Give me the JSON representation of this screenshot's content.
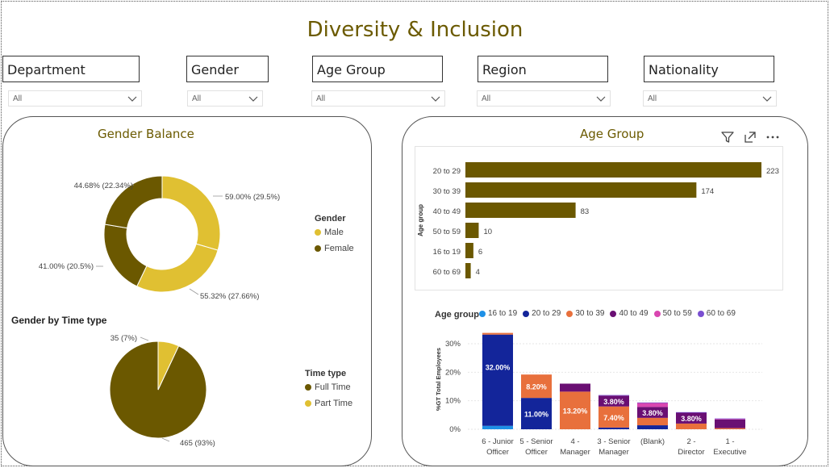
{
  "report": {
    "title": "Diversity & Inclusion"
  },
  "slicers": [
    {
      "label": "Department",
      "value": "All"
    },
    {
      "label": "Gender",
      "value": "All"
    },
    {
      "label": "Age Group",
      "value": "All"
    },
    {
      "label": "Region",
      "value": "All"
    },
    {
      "label": "Nationality",
      "value": "All"
    }
  ],
  "colors": {
    "olive": "#6b5800",
    "gold": "#e0c032",
    "brand_title": "#6b5a00",
    "age_16_19": "#1e90e6",
    "age_20_29": "#13259a",
    "age_30_39": "#e8703c",
    "age_40_49": "#6a0f73",
    "age_50_59": "#d946b0",
    "age_60_69": "#7a4fd1"
  },
  "gender_balance": {
    "title": "Gender Balance",
    "legend_title": "Gender",
    "legend": [
      {
        "label": "Male",
        "color": "#e0c032"
      },
      {
        "label": "Female",
        "color": "#6b5800"
      }
    ],
    "labels": {
      "l1": "59.00% (29.5%)",
      "l2": "55.32% (27.66%)",
      "l3": "41.00% (20.5%)",
      "l4": "44.68% (22.34%)"
    }
  },
  "time_type": {
    "title": "Gender by Time type",
    "legend_title": "Time type",
    "legend": [
      {
        "label": "Full Time",
        "color": "#6b5800"
      },
      {
        "label": "Part Time",
        "color": "#e0c032"
      }
    ],
    "labels": {
      "part": "35 (7%)",
      "full": "465 (93%)"
    }
  },
  "age_panel": {
    "title": "Age Group",
    "stacked_legend_title": "Age group"
  },
  "chart_data": [
    {
      "type": "pie",
      "title": "Gender Balance",
      "donut": true,
      "series": [
        {
          "name": "Male",
          "values": [
            29.5,
            27.66
          ]
        },
        {
          "name": "Female",
          "values": [
            20.5,
            22.34
          ]
        }
      ]
    },
    {
      "type": "pie",
      "title": "Gender by Time type",
      "categories": [
        "Full Time",
        "Part Time"
      ],
      "values": [
        465,
        35
      ]
    },
    {
      "type": "bar",
      "orientation": "horizontal",
      "title": "Age Group",
      "ylabel": "Age group",
      "categories": [
        "20 to 29",
        "30 to 39",
        "40 to 49",
        "50 to 59",
        "16 to 19",
        "60 to 69"
      ],
      "values": [
        223,
        174,
        83,
        10,
        6,
        4
      ],
      "xlim": [
        0,
        223
      ]
    },
    {
      "type": "bar",
      "stacked": true,
      "ylabel": "%GT Total Employees",
      "legend_title": "Age group",
      "categories": [
        "6 - Junior Officer",
        "5 - Senior Officer",
        "4 - Manager",
        "3 - Senior Manager",
        "(Blank)",
        "2 - Director",
        "1 - Executive"
      ],
      "yticks": [
        "0%",
        "10%",
        "20%",
        "30%"
      ],
      "ylim": [
        0,
        33
      ],
      "series": [
        {
          "name": "16 to 19",
          "values": [
            1.2,
            0,
            0,
            0,
            0,
            0,
            0
          ]
        },
        {
          "name": "20 to 29",
          "values": [
            32.0,
            11.0,
            0,
            0.6,
            1.4,
            0,
            0
          ]
        },
        {
          "name": "30 to 39",
          "values": [
            0.6,
            8.2,
            13.2,
            7.4,
            2.6,
            2.0,
            0.4
          ]
        },
        {
          "name": "40 to 49",
          "values": [
            0,
            0,
            2.8,
            3.8,
            3.8,
            3.8,
            3.0
          ]
        },
        {
          "name": "50 to 59",
          "values": [
            0,
            0,
            0,
            0,
            1.4,
            0,
            0.2
          ]
        },
        {
          "name": "60 to 69",
          "values": [
            0,
            0,
            0,
            0.2,
            0.2,
            0.2,
            0.2
          ]
        }
      ],
      "data_labels": [
        {
          "bar": 0,
          "series": "20 to 29",
          "text": "32.00%"
        },
        {
          "bar": 1,
          "series": "30 to 39",
          "text": "8.20%"
        },
        {
          "bar": 1,
          "series": "20 to 29",
          "text": "11.00%"
        },
        {
          "bar": 2,
          "series": "30 to 39",
          "text": "13.20%"
        },
        {
          "bar": 3,
          "series": "40 to 49",
          "text": "3.80%"
        },
        {
          "bar": 3,
          "series": "30 to 39",
          "text": "7.40%"
        },
        {
          "bar": 4,
          "series": "40 to 49",
          "text": "3.80%"
        },
        {
          "bar": 5,
          "series": "40 to 49",
          "text": "3.80%"
        }
      ]
    }
  ]
}
